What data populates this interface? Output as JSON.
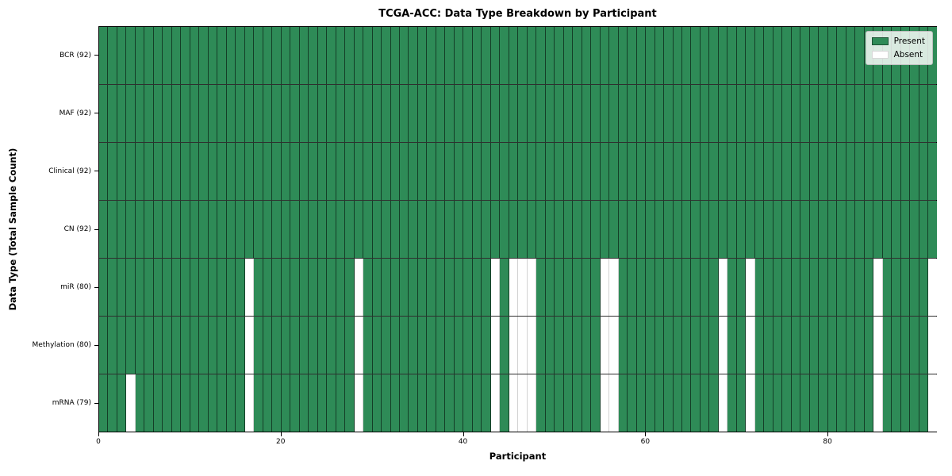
{
  "chart_data": {
    "type": "heatmap",
    "title": "TCGA-ACC: Data Type Breakdown by Participant",
    "xlabel": "Participant",
    "ylabel": "Data Type (Total Sample Count)",
    "x_ticks": [
      0,
      20,
      40,
      60,
      80
    ],
    "x_range": [
      0,
      92
    ],
    "n_participants": 92,
    "grid": true,
    "legend_position": "upper-right",
    "legend": {
      "present_label": "Present",
      "absent_label": "Absent"
    },
    "colors": {
      "present": "#2e8b57",
      "absent": "#ffffff"
    },
    "rows": [
      {
        "label": "BCR (92)",
        "data_type": "BCR",
        "present_count": 92,
        "absent_participants": []
      },
      {
        "label": "MAF (92)",
        "data_type": "MAF",
        "present_count": 92,
        "absent_participants": []
      },
      {
        "label": "Clinical (92)",
        "data_type": "Clinical",
        "present_count": 92,
        "absent_participants": []
      },
      {
        "label": "CN (92)",
        "data_type": "CN",
        "present_count": 92,
        "absent_participants": []
      },
      {
        "label": "miR (80)",
        "data_type": "miR",
        "present_count": 80,
        "absent_participants": [
          16,
          28,
          43,
          45,
          46,
          47,
          55,
          56,
          68,
          71,
          85,
          91
        ]
      },
      {
        "label": "Methylation (80)",
        "data_type": "Methylation",
        "present_count": 80,
        "absent_participants": [
          16,
          28,
          43,
          45,
          46,
          47,
          55,
          56,
          68,
          71,
          85,
          91
        ]
      },
      {
        "label": "mRNA (79)",
        "data_type": "mRNA",
        "present_count": 79,
        "absent_participants": [
          3,
          16,
          28,
          43,
          45,
          46,
          47,
          55,
          56,
          68,
          71,
          85,
          91
        ]
      }
    ]
  }
}
